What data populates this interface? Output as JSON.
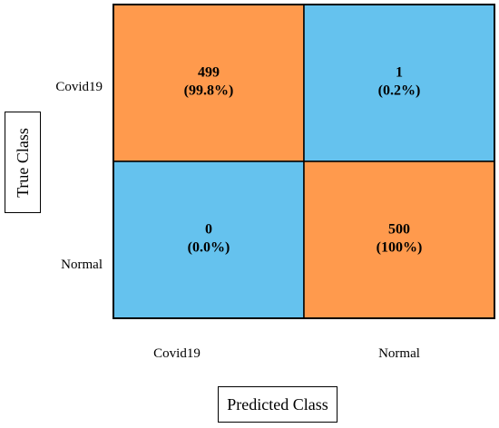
{
  "colors": {
    "correct": "#FF9A4D",
    "incorrect": "#65C2EE"
  },
  "chart_data": {
    "type": "heatmap",
    "title": "",
    "xlabel": "Predicted Class",
    "ylabel": "True Class",
    "x_categories": [
      "Covid19",
      "Normal"
    ],
    "y_categories": [
      "Covid19",
      "Normal"
    ],
    "cells": [
      {
        "row": 0,
        "col": 0,
        "count": "499",
        "percent": "(99.8%)",
        "value": 499
      },
      {
        "row": 0,
        "col": 1,
        "count": "1",
        "percent": "(0.2%)",
        "value": 1
      },
      {
        "row": 1,
        "col": 0,
        "count": "0",
        "percent": "(0.0%)",
        "value": 0
      },
      {
        "row": 1,
        "col": 1,
        "count": "500",
        "percent": "(100%)",
        "value": 500
      }
    ]
  }
}
